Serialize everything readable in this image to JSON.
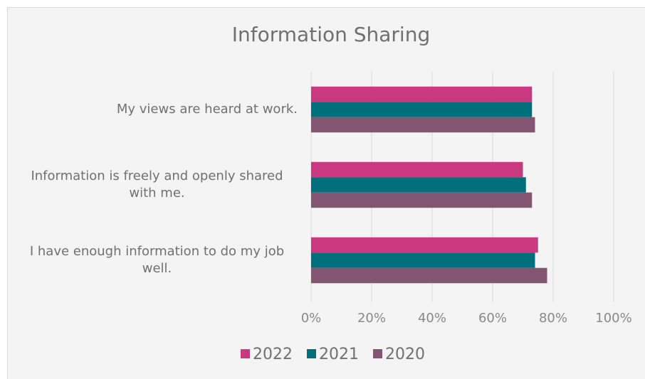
{
  "chart_data": {
    "type": "bar",
    "orientation": "horizontal",
    "title": "Information Sharing",
    "categories": [
      "My views are heard at work.",
      "Information is freely and openly shared with me.",
      "I have enough information to do my job well."
    ],
    "series": [
      {
        "name": "2022",
        "color": "#c9397f",
        "values": [
          73,
          70,
          75
        ]
      },
      {
        "name": "2021",
        "color": "#006f7c",
        "values": [
          73,
          71,
          74
        ]
      },
      {
        "name": "2020",
        "color": "#835570",
        "values": [
          74,
          73,
          78
        ]
      }
    ],
    "xlim": [
      0,
      100
    ],
    "xticks": [
      {
        "value": 0,
        "label": "0%"
      },
      {
        "value": 20,
        "label": "20%"
      },
      {
        "value": 40,
        "label": "40%"
      },
      {
        "value": 60,
        "label": "60%"
      },
      {
        "value": 80,
        "label": "80%"
      },
      {
        "value": 100,
        "label": "100%"
      }
    ],
    "grid": true,
    "legend": "bottom"
  }
}
